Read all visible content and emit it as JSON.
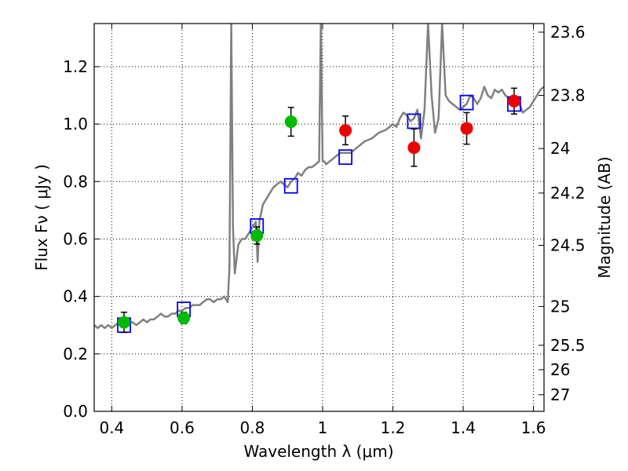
{
  "chart_data": {
    "type": "scatter",
    "xlabel": "Wavelength  λ (μm)",
    "ylabel": "Flux  Fν  ( μJy )",
    "ylabel_right": "Magnitude (AB)",
    "xlim": [
      0.35,
      1.63
    ],
    "ylim": [
      0.0,
      1.35
    ],
    "grid": true,
    "x_ticks": [
      0.4,
      0.6,
      0.8,
      1.0,
      1.2,
      1.4,
      1.6
    ],
    "x_tick_labels": [
      "0.4",
      "0.6",
      "0.8",
      "1",
      "1.2",
      "1.4",
      "1.6"
    ],
    "y_ticks": [
      0.0,
      0.2,
      0.4,
      0.6,
      0.8,
      1.0,
      1.2
    ],
    "y_tick_labels": [
      "0.0",
      "0.2",
      "0.4",
      "0.6",
      "0.8",
      "1.0",
      "1.2"
    ],
    "right_ticks": [
      {
        "label": "23.6",
        "flux": 1.32
      },
      {
        "label": "23.8",
        "flux": 1.1
      },
      {
        "label": "24",
        "flux": 0.915
      },
      {
        "label": "24.2",
        "flux": 0.76
      },
      {
        "label": "24.5",
        "flux": 0.578
      },
      {
        "label": "25",
        "flux": 0.365
      },
      {
        "label": "25.5",
        "flux": 0.23
      },
      {
        "label": "26",
        "flux": 0.145
      },
      {
        "label": "27",
        "flux": 0.058
      }
    ],
    "colors": {
      "model": "#808080",
      "model_photometry": "#0000ff",
      "green_points": "#00bb00",
      "red_points": "#ee0000",
      "errorbars": "#000000"
    },
    "series": [
      {
        "name": "Model spectrum",
        "kind": "line",
        "x": [
          0.35,
          0.36,
          0.37,
          0.38,
          0.39,
          0.4,
          0.41,
          0.42,
          0.43,
          0.44,
          0.45,
          0.46,
          0.47,
          0.48,
          0.49,
          0.5,
          0.51,
          0.52,
          0.53,
          0.54,
          0.55,
          0.56,
          0.57,
          0.58,
          0.59,
          0.6,
          0.61,
          0.62,
          0.63,
          0.64,
          0.65,
          0.66,
          0.67,
          0.68,
          0.69,
          0.7,
          0.71,
          0.72,
          0.73,
          0.735,
          0.74,
          0.745,
          0.75,
          0.76,
          0.77,
          0.78,
          0.79,
          0.8,
          0.81,
          0.815,
          0.82,
          0.83,
          0.84,
          0.85,
          0.86,
          0.87,
          0.88,
          0.89,
          0.9,
          0.91,
          0.92,
          0.93,
          0.94,
          0.95,
          0.96,
          0.97,
          0.98,
          0.99,
          0.995,
          1.0,
          1.005,
          1.01,
          1.02,
          1.03,
          1.04,
          1.05,
          1.06,
          1.08,
          1.1,
          1.12,
          1.14,
          1.16,
          1.18,
          1.2,
          1.21,
          1.22,
          1.23,
          1.24,
          1.25,
          1.26,
          1.27,
          1.28,
          1.29,
          1.3,
          1.31,
          1.32,
          1.33,
          1.34,
          1.35,
          1.36,
          1.37,
          1.38,
          1.39,
          1.4,
          1.41,
          1.42,
          1.43,
          1.44,
          1.45,
          1.46,
          1.47,
          1.48,
          1.49,
          1.5,
          1.51,
          1.52,
          1.53,
          1.54,
          1.55,
          1.56,
          1.57,
          1.58,
          1.59,
          1.6,
          1.61,
          1.62,
          1.63
        ],
        "y": [
          0.3,
          0.29,
          0.3,
          0.29,
          0.3,
          0.29,
          0.3,
          0.31,
          0.3,
          0.3,
          0.31,
          0.31,
          0.3,
          0.31,
          0.32,
          0.31,
          0.32,
          0.32,
          0.33,
          0.34,
          0.33,
          0.33,
          0.34,
          0.34,
          0.35,
          0.35,
          0.36,
          0.36,
          0.37,
          0.37,
          0.37,
          0.38,
          0.39,
          0.39,
          0.38,
          0.39,
          0.39,
          0.4,
          0.38,
          0.5,
          1.35,
          0.64,
          0.48,
          0.58,
          0.6,
          0.6,
          0.62,
          0.64,
          0.66,
          0.52,
          0.66,
          0.72,
          0.74,
          0.76,
          0.78,
          0.79,
          0.8,
          0.79,
          0.78,
          0.8,
          0.81,
          0.83,
          0.82,
          0.84,
          0.85,
          0.85,
          0.86,
          0.87,
          1.35,
          0.87,
          0.87,
          0.86,
          0.87,
          0.88,
          0.89,
          0.9,
          0.9,
          0.9,
          0.92,
          0.94,
          0.95,
          0.97,
          0.98,
          1.0,
          0.99,
          1.02,
          1.04,
          1.03,
          1.01,
          1.02,
          1.05,
          0.95,
          1.05,
          1.35,
          1.1,
          0.97,
          1.02,
          1.35,
          1.1,
          1.08,
          1.07,
          1.06,
          1.05,
          1.06,
          1.07,
          1.1,
          1.09,
          1.07,
          1.09,
          1.13,
          1.1,
          1.09,
          1.12,
          1.11,
          1.12,
          1.1,
          1.09,
          1.1,
          1.08,
          1.07,
          1.04,
          1.05,
          1.06,
          1.08,
          1.1,
          1.12,
          1.13
        ]
      },
      {
        "name": "Model photometry",
        "kind": "open-square",
        "points": [
          {
            "x": 0.435,
            "y": 0.3
          },
          {
            "x": 0.605,
            "y": 0.355
          },
          {
            "x": 0.813,
            "y": 0.645
          },
          {
            "x": 0.91,
            "y": 0.785
          },
          {
            "x": 1.065,
            "y": 0.885
          },
          {
            "x": 1.26,
            "y": 1.01
          },
          {
            "x": 1.41,
            "y": 1.075
          },
          {
            "x": 1.545,
            "y": 1.07
          }
        ]
      },
      {
        "name": "Observed (green)",
        "kind": "filled-circle",
        "color_key": "green_points",
        "points": [
          {
            "x": 0.435,
            "y": 0.31,
            "err": 0.035
          },
          {
            "x": 0.605,
            "y": 0.325,
            "err": 0.02
          },
          {
            "x": 0.813,
            "y": 0.612,
            "err": 0.03
          },
          {
            "x": 0.91,
            "y": 1.008,
            "err": 0.05
          }
        ]
      },
      {
        "name": "Observed (red)",
        "kind": "filled-circle",
        "color_key": "red_points",
        "points": [
          {
            "x": 1.065,
            "y": 0.978,
            "err": 0.05
          },
          {
            "x": 1.26,
            "y": 0.918,
            "err": 0.065
          },
          {
            "x": 1.41,
            "y": 0.985,
            "err": 0.055
          },
          {
            "x": 1.545,
            "y": 1.08,
            "err": 0.045
          }
        ]
      }
    ]
  }
}
